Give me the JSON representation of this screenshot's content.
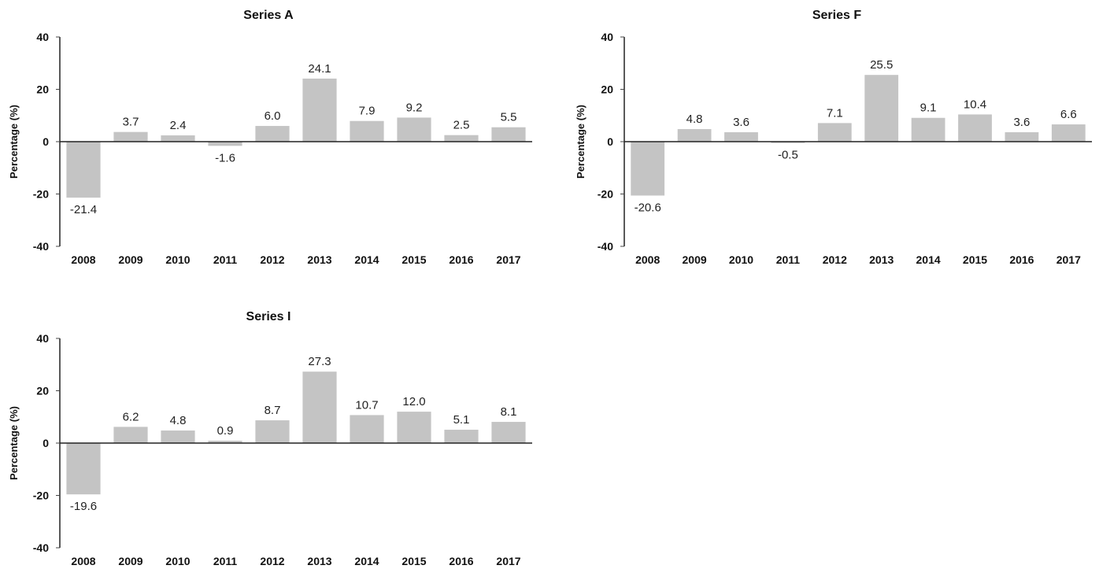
{
  "chart_data": [
    {
      "type": "bar",
      "title": "Series A",
      "ylabel": "Percentage (%)",
      "categories": [
        "2008",
        "2009",
        "2010",
        "2011",
        "2012",
        "2013",
        "2014",
        "2015",
        "2016",
        "2017"
      ],
      "values": [
        -21.4,
        3.7,
        2.4,
        -1.6,
        6.0,
        24.1,
        7.9,
        9.2,
        2.5,
        5.5
      ],
      "value_labels": [
        "-21.4",
        "3.7",
        "2.4",
        "-1.6",
        "6.0",
        "24.1",
        "7.9",
        "9.2",
        "2.5",
        "5.5"
      ],
      "yticks": [
        "40",
        "20",
        "0",
        "-20",
        "-40"
      ],
      "ylim": [
        -40,
        40
      ]
    },
    {
      "type": "bar",
      "title": "Series F",
      "ylabel": "Percentage (%)",
      "categories": [
        "2008",
        "2009",
        "2010",
        "2011",
        "2012",
        "2013",
        "2014",
        "2015",
        "2016",
        "2017"
      ],
      "values": [
        -20.6,
        4.8,
        3.6,
        -0.5,
        7.1,
        25.5,
        9.1,
        10.4,
        3.6,
        6.6
      ],
      "value_labels": [
        "-20.6",
        "4.8",
        "3.6",
        "-0.5",
        "7.1",
        "25.5",
        "9.1",
        "10.4",
        "3.6",
        "6.6"
      ],
      "yticks": [
        "40",
        "20",
        "0",
        "-20",
        "-40"
      ],
      "ylim": [
        -40,
        40
      ]
    },
    {
      "type": "bar",
      "title": "Series I",
      "ylabel": "Percentage (%)",
      "categories": [
        "2008",
        "2009",
        "2010",
        "2011",
        "2012",
        "2013",
        "2014",
        "2015",
        "2016",
        "2017"
      ],
      "values": [
        -19.6,
        6.2,
        4.8,
        0.9,
        8.7,
        27.3,
        10.7,
        12.0,
        5.1,
        8.1
      ],
      "value_labels": [
        "-19.6",
        "6.2",
        "4.8",
        "0.9",
        "8.7",
        "27.3",
        "10.7",
        "12.0",
        "5.1",
        "8.1"
      ],
      "yticks": [
        "40",
        "20",
        "0",
        "-20",
        "-40"
      ],
      "ylim": [
        -40,
        40
      ]
    }
  ],
  "colors": {
    "bar": "#c4c4c4",
    "axis": "#222222"
  }
}
